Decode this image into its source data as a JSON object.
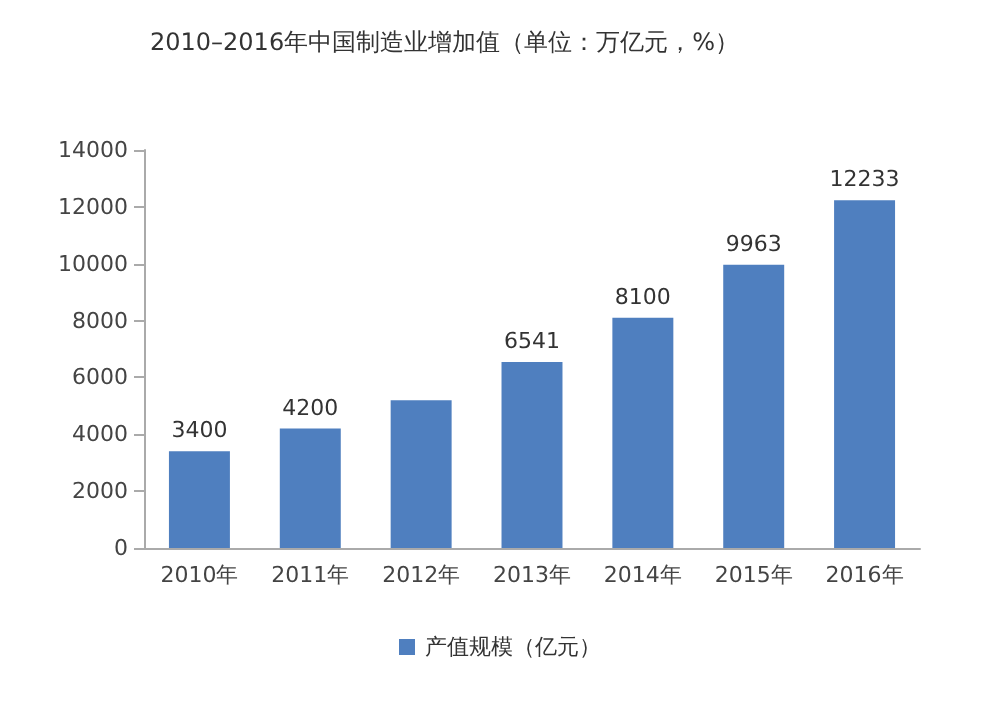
{
  "chart_data": {
    "type": "bar",
    "title": "2010–2016年中国制造业增加值（单位：万亿元，%）",
    "categories": [
      "2010年",
      "2011年",
      "2012年",
      "2013年",
      "2014年",
      "2015年",
      "2016年"
    ],
    "series": [
      {
        "name": "产值规模（亿元）",
        "color": "#4f7fbf",
        "values": [
          3400,
          4200,
          5200,
          6541,
          8100,
          9963,
          12233
        ],
        "value_labels": [
          "3400",
          "4200",
          null,
          "6541",
          "8100",
          "9963",
          "12233"
        ]
      }
    ],
    "ylim": [
      0,
      14000
    ],
    "yticks": [
      0,
      2000,
      4000,
      6000,
      8000,
      10000,
      12000,
      14000
    ],
    "grid": false,
    "legend": "bottom"
  }
}
